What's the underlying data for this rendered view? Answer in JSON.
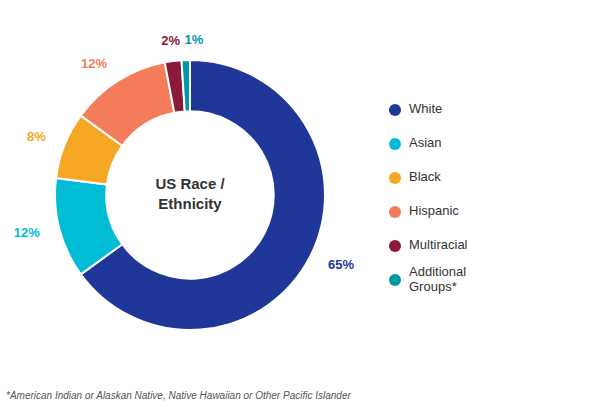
{
  "chart_data": {
    "type": "donut",
    "title": "US Race /\nEthnicity",
    "categories": [
      "White",
      "Asian",
      "Black",
      "Hispanic",
      "Multiracial",
      "Additional\nGroups*"
    ],
    "values": [
      65,
      12,
      8,
      12,
      2,
      1
    ],
    "value_labels": [
      "65%",
      "12%",
      "8%",
      "12%",
      "2%",
      "1%"
    ],
    "colors": [
      "#1e3799",
      "#00bcd4",
      "#f5a623",
      "#f47c5a",
      "#8b1a3a",
      "#0097a7"
    ],
    "data_labels": true,
    "legend": "right",
    "annotations": [
      "*American Indian or Alaskan Native, Native Hawaiian or Other Pacific Islander"
    ]
  }
}
